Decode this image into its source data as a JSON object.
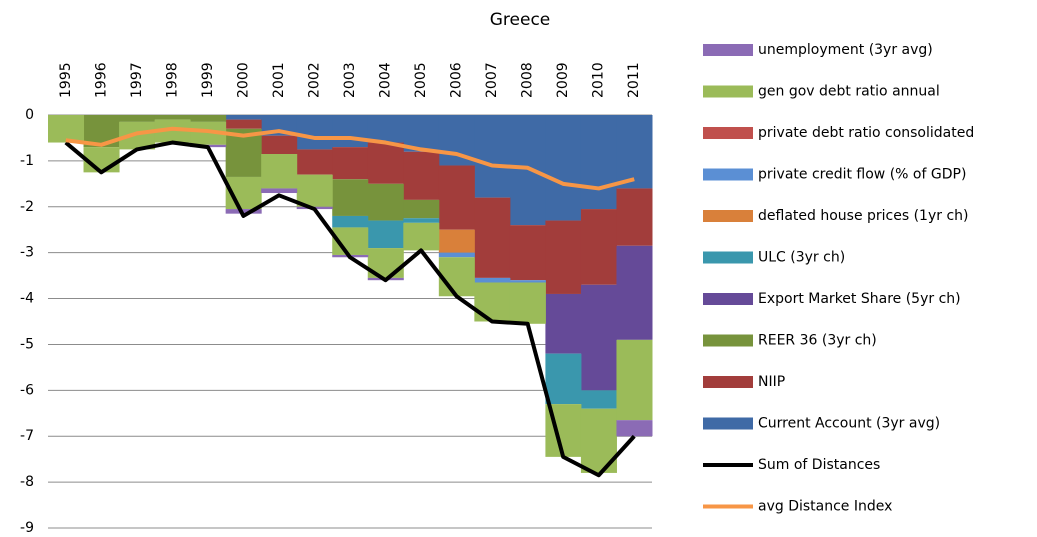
{
  "chart_data": {
    "type": "stacked_bar_line",
    "title": "Greece",
    "categories": [
      "1995",
      "1996",
      "1997",
      "1998",
      "1999",
      "2000",
      "2001",
      "2002",
      "2003",
      "2004",
      "2005",
      "2006",
      "2007",
      "2008",
      "2009",
      "2010",
      "2011"
    ],
    "ylim": [
      -9,
      0
    ],
    "yticks": [
      0,
      -1,
      -2,
      -3,
      -4,
      -5,
      -6,
      -7,
      -8,
      -9
    ],
    "grid": true,
    "series": [
      {
        "name": "Current Account (3yr avg)",
        "color": "#3f6aa6",
        "kind": "bar",
        "values": [
          0,
          0,
          0,
          0,
          0,
          -0.1,
          -0.45,
          -0.75,
          -0.7,
          -0.6,
          -0.8,
          -1.1,
          -1.8,
          -2.4,
          -2.3,
          -2.05,
          -1.6
        ]
      },
      {
        "name": "NIIP",
        "color": "#a23d3b",
        "kind": "bar",
        "values": [
          0,
          0,
          0,
          0,
          0,
          -0.2,
          -0.4,
          -0.55,
          -0.7,
          -0.9,
          -1.05,
          -1.4,
          -1.75,
          -1.2,
          -1.6,
          -1.65,
          -1.25
        ]
      },
      {
        "name": "REER 36 (3yr ch)",
        "color": "#77933c",
        "kind": "bar",
        "values": [
          0,
          -0.7,
          -0.15,
          -0.1,
          -0.15,
          -1.05,
          0,
          0,
          -0.8,
          -0.8,
          -0.4,
          0,
          0,
          0,
          0,
          0,
          0
        ]
      },
      {
        "name": "Export Market Share (5yr ch)",
        "color": "#654a98",
        "kind": "bar",
        "values": [
          0,
          0,
          0,
          0,
          0,
          0,
          0,
          0,
          0,
          0,
          0,
          0,
          0,
          0,
          -1.3,
          -2.3,
          -2.05
        ]
      },
      {
        "name": "ULC (3yr ch)",
        "color": "#3a97ad",
        "kind": "bar",
        "values": [
          0,
          0,
          0,
          0,
          0,
          0,
          0,
          0,
          -0.25,
          -0.6,
          -0.1,
          0,
          0,
          0,
          -1.1,
          -0.4,
          0
        ]
      },
      {
        "name": "deflated house prices (1yr ch)",
        "color": "#d9803a",
        "kind": "bar",
        "values": [
          0,
          0,
          0,
          0,
          0,
          0,
          0,
          0,
          0,
          0,
          0,
          -0.5,
          0,
          0,
          0,
          0,
          0
        ]
      },
      {
        "name": "private credit flow (% of GDP)",
        "color": "#5b8fd4",
        "kind": "bar",
        "values": [
          0,
          0,
          0,
          0,
          0,
          0,
          0,
          0,
          0,
          0,
          0,
          -0.1,
          -0.1,
          -0.05,
          0,
          0,
          0
        ]
      },
      {
        "name": "private debt ratio consolidated",
        "color": "#c0504d",
        "kind": "bar",
        "values": [
          0,
          0,
          0,
          0,
          0,
          0,
          0,
          0,
          0,
          0,
          0,
          0,
          0,
          0,
          0,
          0,
          0
        ]
      },
      {
        "name": "gen gov debt ratio annual",
        "color": "#9bbb59",
        "kind": "bar",
        "values": [
          -0.6,
          -0.55,
          -0.6,
          -0.5,
          -0.5,
          -0.7,
          -0.75,
          -0.7,
          -0.6,
          -0.65,
          -0.6,
          -0.85,
          -0.85,
          -0.9,
          -1.15,
          -1.4,
          -1.75
        ]
      },
      {
        "name": "unemployment (3yr avg)",
        "color": "#8b6bb5",
        "kind": "bar",
        "values": [
          0,
          0,
          0,
          0,
          -0.05,
          -0.1,
          -0.1,
          -0.05,
          -0.05,
          -0.05,
          0,
          0,
          0,
          0,
          0,
          0,
          -0.35
        ]
      },
      {
        "name": "Sum of Distances",
        "color": "#000000",
        "kind": "line",
        "values": [
          -0.6,
          -1.25,
          -0.75,
          -0.6,
          -0.7,
          -2.2,
          -1.75,
          -2.05,
          -3.1,
          -3.6,
          -2.95,
          -3.95,
          -4.5,
          -4.55,
          -7.45,
          -7.85,
          -7.0
        ]
      },
      {
        "name": "avg Distance Index",
        "color": "#f79646",
        "kind": "line",
        "values": [
          -0.55,
          -0.65,
          -0.4,
          -0.3,
          -0.35,
          -0.45,
          -0.35,
          -0.5,
          -0.5,
          -0.6,
          -0.75,
          -0.85,
          -1.1,
          -1.15,
          -1.5,
          -1.6,
          -1.4
        ]
      }
    ]
  }
}
